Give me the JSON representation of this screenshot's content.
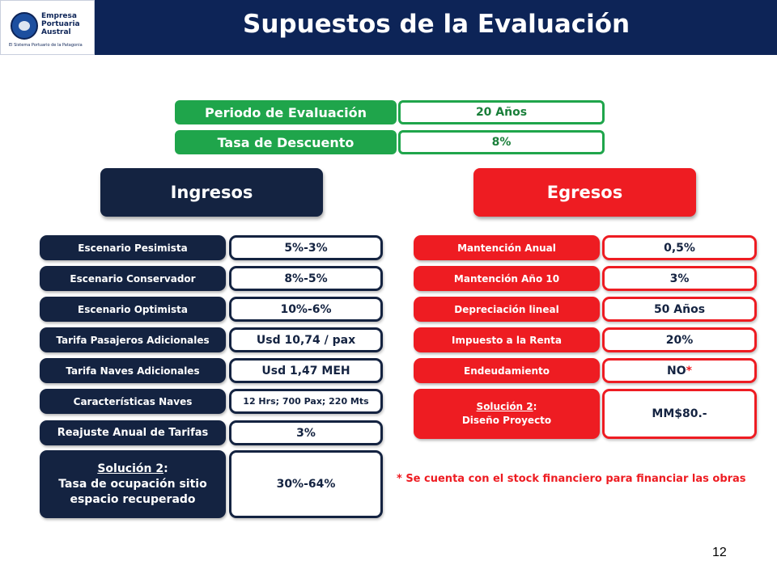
{
  "logo": {
    "name": "Empresa\nPortuaria\nAustral",
    "tagline": "El Sistema Portuario de la Patagonia"
  },
  "title": "Supuestos de la Evaluación",
  "evaluation": {
    "periodo_label": "Periodo de Evaluación",
    "periodo_value": "20 Años",
    "tasa_label": "Tasa de Descuento",
    "tasa_value": "8%"
  },
  "ingresos": {
    "title": "Ingresos",
    "items": [
      {
        "label": "Escenario Pesimista",
        "value": "5%-3%"
      },
      {
        "label": "Escenario Conservador",
        "value": "8%-5%"
      },
      {
        "label": "Escenario Optimista",
        "value": "10%-6%"
      },
      {
        "label": "Tarifa Pasajeros Adicionales",
        "value": "Usd 10,74 / pax"
      },
      {
        "label": "Tarifa Naves Adicionales",
        "value": "Usd 1,47 MEH"
      },
      {
        "label": "Características Naves",
        "value": "12 Hrs; 700 Pax; 220 Mts"
      },
      {
        "label": "Reajuste Anual de Tarifas",
        "value": "3%"
      }
    ],
    "solution": {
      "title": "Solución 2",
      "colon": ":",
      "line1": "Tasa de ocupación sitio",
      "line2": "espacio recuperado",
      "value": "30%-64%"
    }
  },
  "egresos": {
    "title": "Egresos",
    "items": [
      {
        "label": "Mantención Anual",
        "value": "0,5%"
      },
      {
        "label": "Mantención Año 10",
        "value": "3%"
      },
      {
        "label": "Depreciación lineal",
        "value": "50 Años"
      },
      {
        "label": "Impuesto a la Renta",
        "value": "20%"
      },
      {
        "label": "Endeudamiento",
        "value": "NO",
        "value_mark": " *"
      }
    ],
    "solution": {
      "title": "Solución 2",
      "colon": ":",
      "line1": "Diseño Proyecto",
      "value": "MM$80.-"
    }
  },
  "footnote": "* Se cuenta con el stock financiero para financiar las obras",
  "page_number": "12",
  "colors": {
    "header": "#0d2457",
    "green": "#1fa54b",
    "navy": "#142341",
    "red": "#ee1c22"
  }
}
